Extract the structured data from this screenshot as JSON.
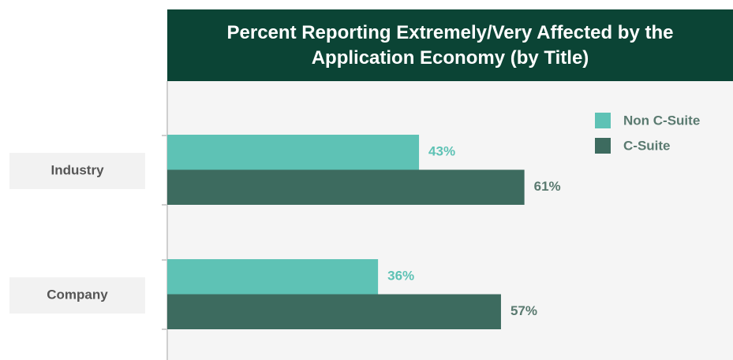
{
  "chart_data": {
    "type": "barh",
    "title": "Percent Reporting Extremely/Very Affected by the Application Economy (by Title)",
    "categories": [
      "Industry",
      "Company"
    ],
    "series": [
      {
        "name": "Non C-Suite",
        "color": "#5ec2b5",
        "values": [
          43,
          36
        ],
        "value_labels": [
          "43%",
          "36%"
        ]
      },
      {
        "name": "C-Suite",
        "color": "#3d6b5f",
        "values": [
          61,
          57
        ],
        "value_labels": [
          "61%",
          "57%"
        ]
      }
    ],
    "xlim": [
      0,
      100
    ],
    "legend": "upper right"
  }
}
